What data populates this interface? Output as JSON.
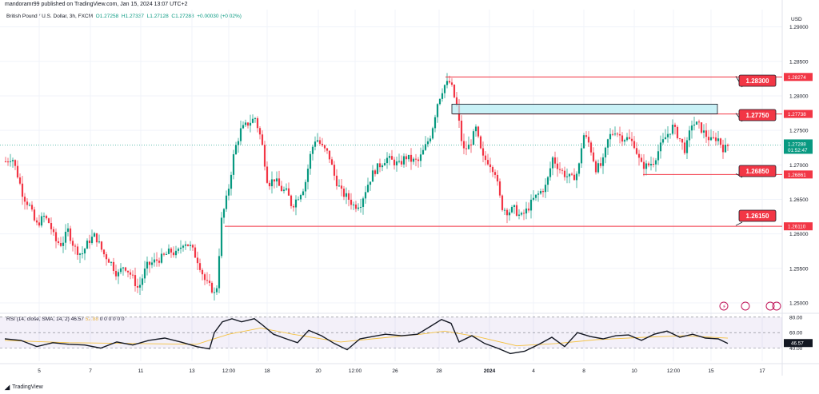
{
  "header": {
    "caption": "mandoramr99 published on TradingView.com, Jan 15, 2024 13:07 UTC+2"
  },
  "symbol": {
    "title": "British Pound / U.S. Dollar, 3h, FXCM",
    "open": "O1.27258",
    "high": "H1.27337",
    "low": "L1.27128",
    "close": "C1.27288",
    "change": "+0.00030 (+0.02%)"
  },
  "currency_label": "USD",
  "price_axis": {
    "ticks": [
      "1.29000",
      "1.28500",
      "1.28000",
      "1.27500",
      "1.27000",
      "1.26500",
      "1.26000",
      "1.25500",
      "1.25000"
    ]
  },
  "levels": [
    {
      "callout": "1.28300",
      "axis_label": "1.28274"
    },
    {
      "callout": "1.27750",
      "axis_label": "1.27738"
    },
    {
      "callout": "1.26850",
      "axis_label": "1.26861"
    },
    {
      "callout": "1.26150",
      "axis_label": "1.26110"
    }
  ],
  "current_price": {
    "value": "1.27288",
    "countdown": "01:52:47"
  },
  "rsi_pane": {
    "label": "RSI (14, close, SMA, 14, 2)",
    "rsi_value": "46.57",
    "ma_value": "52.88",
    "zeros": "0  0  0  0  0  0",
    "ticks": [
      "80.00",
      "60.00",
      "40.00"
    ]
  },
  "time_axis": {
    "labels": [
      "5",
      "7",
      "11",
      "13",
      "12:00",
      "18",
      "20",
      "12:00",
      "26",
      "28",
      "2024",
      "4",
      "8",
      "10",
      "12:00",
      "15",
      "17"
    ]
  },
  "footer": {
    "brand": "TradingView"
  },
  "colors": {
    "up": "#089981",
    "down": "#f23645",
    "level": "#f23645",
    "zone": "#b2ebf2",
    "rsi": "#131722",
    "rsi_ma": "#f5c242"
  },
  "chart_data": {
    "type": "candlestick",
    "title": "British Pound / U.S. Dollar, 3h, FXCM",
    "ylim": [
      1.2485,
      1.2925
    ],
    "price_levels": [
      1.283,
      1.2775,
      1.2685,
      1.2615
    ],
    "resistance_zone": [
      1.2774,
      1.2788
    ],
    "x_categories": [
      "5",
      "7",
      "11",
      "13",
      "12:00",
      "18",
      "20",
      "12:00",
      "26",
      "28",
      "2024",
      "4",
      "8",
      "10",
      "12:00",
      "15",
      "17"
    ],
    "close_path": [
      [
        0,
        1.2705
      ],
      [
        8,
        1.2712
      ],
      [
        15,
        1.2685
      ],
      [
        22,
        1.2655
      ],
      [
        30,
        1.264
      ],
      [
        38,
        1.2612
      ],
      [
        48,
        1.2625
      ],
      [
        55,
        1.2615
      ],
      [
        62,
        1.259
      ],
      [
        70,
        1.2585
      ],
      [
        78,
        1.2605
      ],
      [
        86,
        1.258
      ],
      [
        95,
        1.257
      ],
      [
        104,
        1.259
      ],
      [
        112,
        1.2598
      ],
      [
        122,
        1.2572
      ],
      [
        131,
        1.256
      ],
      [
        140,
        1.254
      ],
      [
        148,
        1.2555
      ],
      [
        157,
        1.254
      ],
      [
        166,
        1.252
      ],
      [
        176,
        1.2553
      ],
      [
        186,
        1.256
      ],
      [
        196,
        1.2566
      ],
      [
        206,
        1.2575
      ],
      [
        214,
        1.257
      ],
      [
        223,
        1.259
      ],
      [
        232,
        1.258
      ],
      [
        241,
        1.256
      ],
      [
        250,
        1.253
      ],
      [
        258,
        1.252
      ],
      [
        263,
        1.2508
      ],
      [
        270,
        1.262
      ],
      [
        278,
        1.266
      ],
      [
        286,
        1.272
      ],
      [
        294,
        1.275
      ],
      [
        303,
        1.276
      ],
      [
        312,
        1.2768
      ],
      [
        320,
        1.2735
      ],
      [
        328,
        1.2672
      ],
      [
        336,
        1.268
      ],
      [
        344,
        1.2665
      ],
      [
        352,
        1.266
      ],
      [
        358,
        1.264
      ],
      [
        366,
        1.2655
      ],
      [
        374,
        1.267
      ],
      [
        382,
        1.272
      ],
      [
        388,
        1.274
      ],
      [
        396,
        1.2725
      ],
      [
        404,
        1.2715
      ],
      [
        412,
        1.268
      ],
      [
        420,
        1.266
      ],
      [
        428,
        1.2652
      ],
      [
        436,
        1.264
      ],
      [
        444,
        1.2645
      ],
      [
        452,
        1.267
      ],
      [
        460,
        1.269
      ],
      [
        468,
        1.27
      ],
      [
        476,
        1.271
      ],
      [
        484,
        1.2705
      ],
      [
        492,
        1.27
      ],
      [
        500,
        1.2712
      ],
      [
        508,
        1.2706
      ],
      [
        516,
        1.2705
      ],
      [
        524,
        1.2724
      ],
      [
        532,
        1.2745
      ],
      [
        540,
        1.279
      ],
      [
        548,
        1.2815
      ],
      [
        556,
        1.282
      ],
      [
        564,
        1.2785
      ],
      [
        572,
        1.272
      ],
      [
        580,
        1.2728
      ],
      [
        588,
        1.2752
      ],
      [
        596,
        1.271
      ],
      [
        604,
        1.2705
      ],
      [
        612,
        1.269
      ],
      [
        620,
        1.264
      ],
      [
        628,
        1.2632
      ],
      [
        636,
        1.2636
      ],
      [
        644,
        1.2624
      ],
      [
        652,
        1.2635
      ],
      [
        660,
        1.265
      ],
      [
        668,
        1.266
      ],
      [
        676,
        1.267
      ],
      [
        684,
        1.271
      ],
      [
        692,
        1.2695
      ],
      [
        700,
        1.2685
      ],
      [
        708,
        1.268
      ],
      [
        716,
        1.269
      ],
      [
        722,
        1.2745
      ],
      [
        730,
        1.273
      ],
      [
        738,
        1.2695
      ],
      [
        746,
        1.27
      ],
      [
        754,
        1.274
      ],
      [
        762,
        1.275
      ],
      [
        770,
        1.274
      ],
      [
        778,
        1.2738
      ],
      [
        786,
        1.273
      ],
      [
        794,
        1.27
      ],
      [
        802,
        1.2698
      ],
      [
        810,
        1.2705
      ],
      [
        818,
        1.2725
      ],
      [
        826,
        1.2742
      ],
      [
        834,
        1.2755
      ],
      [
        842,
        1.274
      ],
      [
        850,
        1.272
      ],
      [
        858,
        1.276
      ],
      [
        866,
        1.2758
      ],
      [
        874,
        1.2745
      ],
      [
        882,
        1.2735
      ],
      [
        890,
        1.274
      ],
      [
        898,
        1.2722
      ],
      [
        904,
        1.2729
      ]
    ],
    "rsi": {
      "label": "RSI (14, close, SMA, 14, 2)",
      "last": 46.57,
      "ma_last": 52.88,
      "ylim": [
        20,
        85
      ],
      "values": [
        [
          0,
          52
        ],
        [
          20,
          50
        ],
        [
          40,
          42
        ],
        [
          60,
          47
        ],
        [
          80,
          45
        ],
        [
          100,
          44
        ],
        [
          120,
          40
        ],
        [
          140,
          48
        ],
        [
          160,
          44
        ],
        [
          180,
          50
        ],
        [
          200,
          53
        ],
        [
          220,
          48
        ],
        [
          240,
          42
        ],
        [
          256,
          39
        ],
        [
          262,
          60
        ],
        [
          272,
          74
        ],
        [
          284,
          78
        ],
        [
          296,
          74
        ],
        [
          312,
          78
        ],
        [
          322,
          70
        ],
        [
          336,
          58
        ],
        [
          352,
          52
        ],
        [
          366,
          47
        ],
        [
          380,
          63
        ],
        [
          396,
          56
        ],
        [
          412,
          46
        ],
        [
          428,
          38
        ],
        [
          444,
          52
        ],
        [
          460,
          55
        ],
        [
          476,
          58
        ],
        [
          496,
          56
        ],
        [
          516,
          58
        ],
        [
          532,
          68
        ],
        [
          546,
          77
        ],
        [
          558,
          72
        ],
        [
          568,
          48
        ],
        [
          584,
          56
        ],
        [
          600,
          46
        ],
        [
          616,
          40
        ],
        [
          632,
          33
        ],
        [
          650,
          36
        ],
        [
          668,
          45
        ],
        [
          684,
          54
        ],
        [
          700,
          42
        ],
        [
          716,
          60
        ],
        [
          732,
          55
        ],
        [
          748,
          52
        ],
        [
          764,
          56
        ],
        [
          780,
          57
        ],
        [
          796,
          50
        ],
        [
          812,
          58
        ],
        [
          828,
          62
        ],
        [
          844,
          54
        ],
        [
          860,
          58
        ],
        [
          876,
          53
        ],
        [
          892,
          52
        ],
        [
          904,
          46
        ]
      ],
      "ma_values": [
        [
          0,
          50
        ],
        [
          80,
          47
        ],
        [
          160,
          46
        ],
        [
          240,
          45
        ],
        [
          280,
          58
        ],
        [
          320,
          66
        ],
        [
          360,
          58
        ],
        [
          420,
          48
        ],
        [
          470,
          53
        ],
        [
          520,
          58
        ],
        [
          550,
          62
        ],
        [
          590,
          55
        ],
        [
          640,
          43
        ],
        [
          690,
          46
        ],
        [
          740,
          51
        ],
        [
          800,
          54
        ],
        [
          850,
          56
        ],
        [
          904,
          52.88
        ]
      ]
    }
  }
}
